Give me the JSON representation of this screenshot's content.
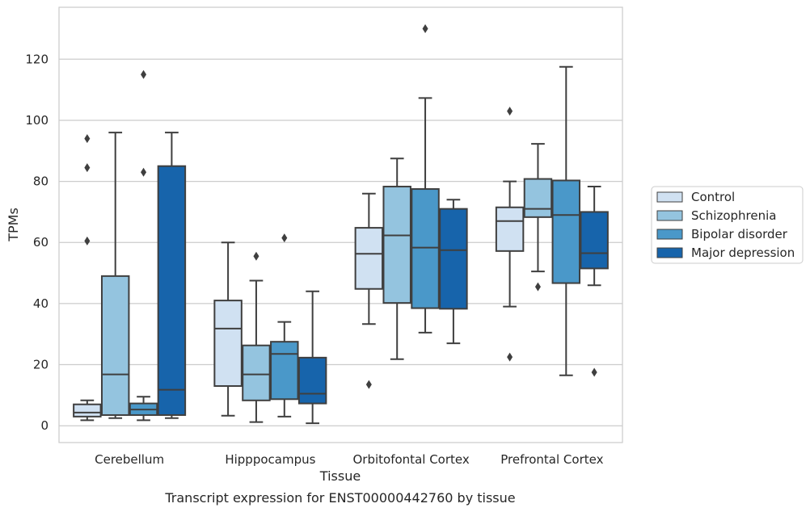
{
  "caption": "Transcript expression for ENST00000442760 by tissue",
  "chart_data": {
    "type": "box",
    "xlabel": "Tissue",
    "ylabel": "TPMs",
    "ylim": [
      -5.5,
      137
    ],
    "yticks": [
      0,
      20,
      40,
      60,
      80,
      100,
      120
    ],
    "grid": "horizontal",
    "legend_position": "right",
    "categories": [
      "Cerebellum",
      "Hipppocampus",
      "Orbitofontal Cortex",
      "Prefrontal Cortex"
    ],
    "series": [
      {
        "name": "Control",
        "color": "#d0e1f2",
        "boxes": [
          {
            "whislo": 1.8,
            "q1": 3.0,
            "med": 4.3,
            "q3": 7.0,
            "whishi": 8.3,
            "fliers": [
              60.5,
              84.5,
              94.0
            ]
          },
          {
            "whislo": 3.3,
            "q1": 13.0,
            "med": 31.8,
            "q3": 41.0,
            "whishi": 60.0,
            "fliers": []
          },
          {
            "whislo": 33.3,
            "q1": 44.8,
            "med": 56.3,
            "q3": 64.8,
            "whishi": 76.0,
            "fliers": [
              13.5
            ]
          },
          {
            "whislo": 39.0,
            "q1": 57.2,
            "med": 67.0,
            "q3": 71.5,
            "whishi": 80.0,
            "fliers": [
              22.5,
              103.0
            ]
          }
        ]
      },
      {
        "name": "Schizophrenia",
        "color": "#94c4df",
        "boxes": [
          {
            "whislo": 2.5,
            "q1": 3.5,
            "med": 16.8,
            "q3": 49.0,
            "whishi": 96.0,
            "fliers": []
          },
          {
            "whislo": 1.2,
            "q1": 8.3,
            "med": 16.8,
            "q3": 26.3,
            "whishi": 47.5,
            "fliers": [
              55.5
            ]
          },
          {
            "whislo": 21.8,
            "q1": 40.2,
            "med": 62.3,
            "q3": 78.3,
            "whishi": 87.5,
            "fliers": []
          },
          {
            "whislo": 50.5,
            "q1": 68.3,
            "med": 71.0,
            "q3": 80.8,
            "whishi": 92.3,
            "fliers": [
              45.5
            ]
          }
        ]
      },
      {
        "name": "Bipolar disorder",
        "color": "#4a98c9",
        "boxes": [
          {
            "whislo": 1.8,
            "q1": 3.5,
            "med": 5.3,
            "q3": 7.3,
            "whishi": 9.5,
            "fliers": [
              83.0,
              115.0
            ]
          },
          {
            "whislo": 3.0,
            "q1": 8.7,
            "med": 23.5,
            "q3": 27.5,
            "whishi": 34.0,
            "fliers": [
              61.5
            ]
          },
          {
            "whislo": 30.5,
            "q1": 38.5,
            "med": 58.3,
            "q3": 77.5,
            "whishi": 107.3,
            "fliers": [
              130.0
            ]
          },
          {
            "whislo": 16.5,
            "q1": 46.7,
            "med": 69.0,
            "q3": 80.3,
            "whishi": 117.5,
            "fliers": []
          }
        ]
      },
      {
        "name": "Major depression",
        "color": "#1764ab",
        "boxes": [
          {
            "whislo": 2.5,
            "q1": 3.5,
            "med": 11.8,
            "q3": 85.0,
            "whishi": 96.0,
            "fliers": []
          },
          {
            "whislo": 0.8,
            "q1": 7.3,
            "med": 10.5,
            "q3": 22.3,
            "whishi": 44.0,
            "fliers": []
          },
          {
            "whislo": 27.0,
            "q1": 38.3,
            "med": 57.5,
            "q3": 71.0,
            "whishi": 74.0,
            "fliers": []
          },
          {
            "whislo": 46.0,
            "q1": 51.5,
            "med": 56.5,
            "q3": 70.0,
            "whishi": 78.3,
            "fliers": [
              17.5
            ]
          }
        ]
      }
    ]
  }
}
